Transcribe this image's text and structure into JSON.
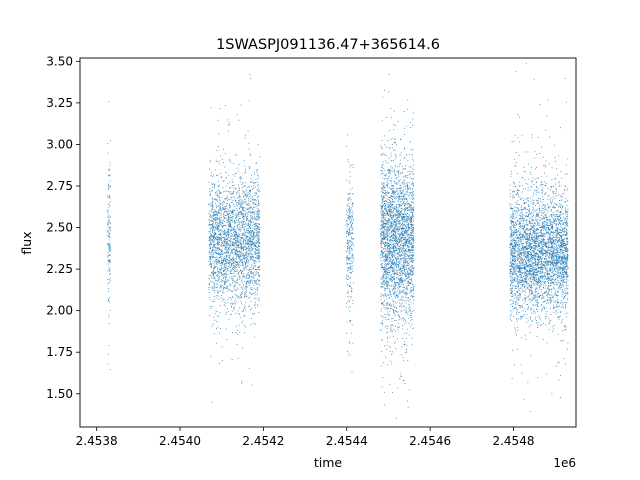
{
  "chart_data": {
    "type": "scatter",
    "title": "1SWASPJ091136.47+365614.6",
    "xlabel": "time",
    "ylabel": "flux",
    "x_offset_label": "1e6",
    "xlim": [
      2453760,
      2454950
    ],
    "ylim": [
      1.3,
      3.52
    ],
    "x_ticks": [
      2453800,
      2454000,
      2454200,
      2454400,
      2454600,
      2454800
    ],
    "x_tick_labels": [
      "2.4538",
      "2.4540",
      "2.4542",
      "2.4544",
      "2.4546",
      "2.4548"
    ],
    "y_ticks": [
      1.5,
      1.75,
      2.0,
      2.25,
      2.5,
      2.75,
      3.0,
      3.25,
      3.5
    ],
    "y_tick_labels": [
      "1.50",
      "1.75",
      "2.00",
      "2.25",
      "2.50",
      "2.75",
      "3.00",
      "3.25",
      "3.50"
    ],
    "grid": false,
    "marker_color": "#1f77b4",
    "observing_seasons": [
      {
        "x_start": 2453825,
        "x_end": 2453832,
        "flux_center": 2.45,
        "flux_spread": 0.22,
        "points": 140
      },
      {
        "x_start": 2454068,
        "x_end": 2454190,
        "flux_center": 2.42,
        "flux_spread": 0.19,
        "points": 2600
      },
      {
        "x_start": 2454398,
        "x_end": 2454415,
        "flux_center": 2.42,
        "flux_spread": 0.22,
        "points": 280
      },
      {
        "x_start": 2454480,
        "x_end": 2454560,
        "flux_center": 2.42,
        "flux_spread": 0.24,
        "points": 2600
      },
      {
        "x_start": 2454790,
        "x_end": 2454930,
        "flux_center": 2.35,
        "flux_spread": 0.18,
        "points": 3600
      }
    ]
  }
}
